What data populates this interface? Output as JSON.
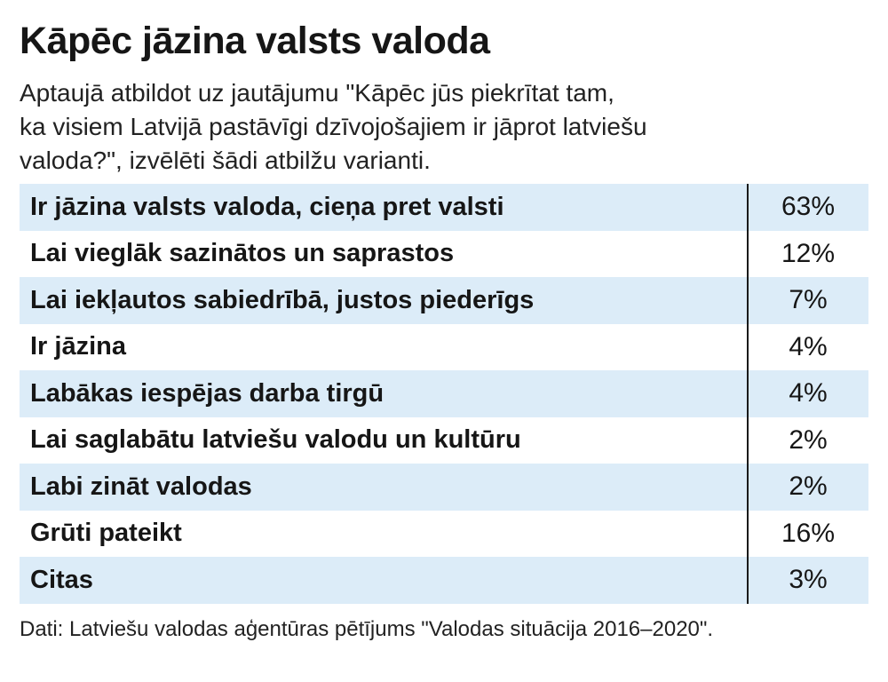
{
  "header": {
    "title": "Kāpēc jāzina valsts valoda",
    "subtitle_lines": [
      "Aptaujā atbildot uz jautājumu \"Kāpēc jūs piekrītat tam,",
      "ka visiem Latvijā pastāvīgi dzīvojošajiem ir jāprot latviešu",
      "valoda?\", izvēlēti šādi atbilžu varianti."
    ]
  },
  "chart_data": {
    "type": "table",
    "rows": [
      {
        "label": "Ir jāzina valsts valoda, cieņa pret valsti",
        "value": "63%"
      },
      {
        "label": "Lai vieglāk sazinātos un saprastos",
        "value": "12%"
      },
      {
        "label": "Lai iekļautos sabiedrībā, justos piederīgs",
        "value": "7%"
      },
      {
        "label": "Ir jāzina",
        "value": "4%"
      },
      {
        "label": "Labākas iespējas darba tirgū",
        "value": "4%"
      },
      {
        "label": "Lai saglabātu latviešu valodu un kultūru",
        "value": "2%"
      },
      {
        "label": "Labi zināt valodas",
        "value": "2%"
      },
      {
        "label": "Grūti pateikt",
        "value": "16%"
      },
      {
        "label": "Citas",
        "value": "3%"
      }
    ],
    "row_colors": {
      "shaded": "#dcecf8",
      "plain": "#ffffff"
    }
  },
  "footer": {
    "source": "Dati: Latviešu valodas aģentūras pētījums \"Valodas situācija 2016–2020\"."
  }
}
